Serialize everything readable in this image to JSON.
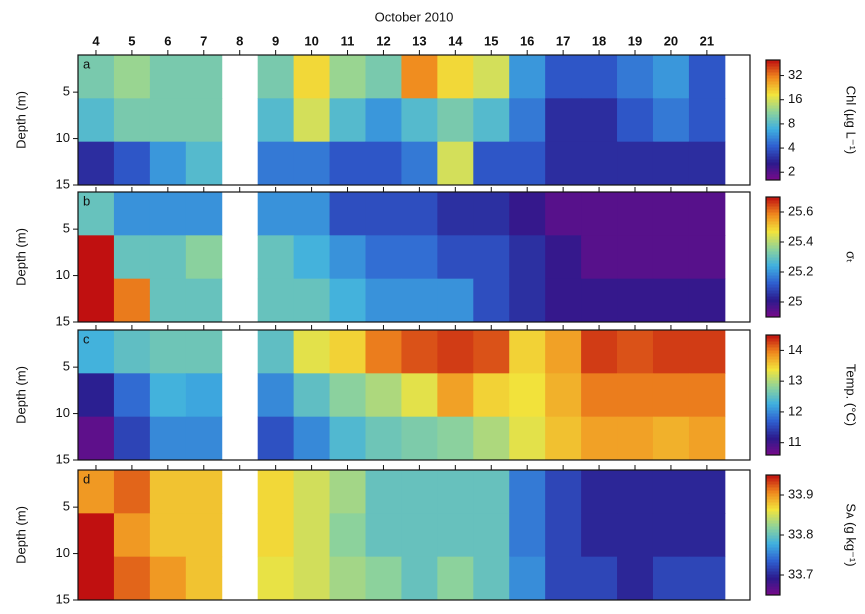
{
  "chart_data": [
    {
      "type": "heatmap",
      "title": "October 2010",
      "label": "a",
      "ylabel": "Depth (m)",
      "colorbar_label": "Chl (µg L⁻¹)",
      "xlim": [
        3.5,
        22.2
      ],
      "xticks": [
        4,
        5,
        6,
        7,
        8,
        9,
        10,
        11,
        12,
        13,
        14,
        15,
        16,
        17,
        18,
        19,
        20,
        21
      ],
      "ylim": [
        15,
        1
      ],
      "yticks": [
        5,
        10,
        15
      ],
      "x": [
        4,
        5,
        6,
        7,
        8,
        9,
        10,
        11,
        12,
        13,
        14,
        15,
        16,
        17,
        18,
        19,
        20,
        21
      ],
      "z": [
        [
          10,
          12,
          10,
          10,
          null,
          10,
          20,
          12,
          10,
          30,
          20,
          16,
          6,
          4,
          4,
          5,
          6,
          4
        ],
        [
          8,
          10,
          10,
          10,
          null,
          8,
          16,
          8,
          6,
          8,
          10,
          8,
          5,
          3,
          3,
          4,
          5,
          4
        ],
        [
          3,
          4,
          6,
          8,
          null,
          5,
          5,
          4,
          4,
          5,
          16,
          4,
          4,
          3,
          3,
          3,
          3,
          3
        ]
      ],
      "clim": [
        1.6,
        50
      ],
      "clog": true,
      "cticks": [
        2,
        4,
        8,
        16,
        32
      ]
    },
    {
      "type": "heatmap",
      "label": "b",
      "ylabel": "Depth (m)",
      "colorbar_label": "σₜ",
      "ylim": [
        15,
        1
      ],
      "yticks": [
        5,
        10,
        15
      ],
      "z": [
        [
          25.3,
          25.2,
          25.2,
          25.2,
          null,
          25.2,
          25.2,
          25.1,
          25.1,
          25.1,
          25.05,
          25.05,
          25.0,
          24.95,
          24.95,
          24.95,
          24.95,
          24.95
        ],
        [
          25.7,
          25.3,
          25.3,
          25.35,
          null,
          25.3,
          25.25,
          25.2,
          25.15,
          25.15,
          25.1,
          25.1,
          25.05,
          25.0,
          24.95,
          24.95,
          24.95,
          24.95
        ],
        [
          25.7,
          25.6,
          25.3,
          25.3,
          null,
          25.3,
          25.3,
          25.25,
          25.2,
          25.2,
          25.2,
          25.1,
          25.05,
          25.0,
          25.0,
          25.0,
          25.0,
          25.0
        ]
      ],
      "clim": [
        24.9,
        25.7
      ],
      "cticks": [
        25,
        25.2,
        25.4,
        25.6
      ]
    },
    {
      "type": "heatmap",
      "label": "c",
      "ylabel": "Depth (m)",
      "colorbar_label": "Temp. (°C)",
      "ylim": [
        15,
        1
      ],
      "yticks": [
        5,
        10,
        15
      ],
      "z": [
        [
          12.3,
          12.5,
          12.6,
          12.6,
          null,
          12.5,
          13.3,
          13.5,
          14,
          14.2,
          14.3,
          14.2,
          13.5,
          13.8,
          14.3,
          14.2,
          14.3,
          14.3
        ],
        [
          11.2,
          11.8,
          12.3,
          12.2,
          null,
          12,
          12.5,
          12.8,
          13,
          13.3,
          13.8,
          13.5,
          13.4,
          13.7,
          14,
          14,
          14,
          14
        ],
        [
          10.8,
          11.5,
          12,
          12,
          null,
          11.6,
          12,
          12.4,
          12.6,
          12.7,
          12.8,
          13,
          13.3,
          13.6,
          13.8,
          13.8,
          13.7,
          13.8
        ]
      ],
      "clim": [
        10.6,
        14.5
      ],
      "cticks": [
        11,
        12,
        13,
        14
      ]
    },
    {
      "type": "heatmap",
      "label": "d",
      "ylabel": "Depth (m)",
      "colorbar_label": "Sᴀ (g kg⁻¹)",
      "ylim": [
        15,
        1
      ],
      "yticks": [
        5,
        10,
        15
      ],
      "z": [
        [
          33.9,
          33.92,
          33.88,
          33.88,
          null,
          33.87,
          33.85,
          33.83,
          33.8,
          33.8,
          33.8,
          33.8,
          33.75,
          33.72,
          33.7,
          33.7,
          33.7,
          33.7
        ],
        [
          33.95,
          33.9,
          33.88,
          33.88,
          null,
          33.87,
          33.85,
          33.82,
          33.8,
          33.8,
          33.8,
          33.8,
          33.75,
          33.72,
          33.7,
          33.7,
          33.7,
          33.7
        ],
        [
          33.95,
          33.92,
          33.9,
          33.88,
          null,
          33.86,
          33.85,
          33.83,
          33.82,
          33.8,
          33.82,
          33.8,
          33.76,
          33.72,
          33.72,
          33.7,
          33.72,
          33.72
        ]
      ],
      "clim": [
        33.65,
        33.95
      ],
      "cticks": [
        33.7,
        33.8,
        33.9
      ]
    }
  ],
  "colormap": [
    "#7a0a8a",
    "#2b1a8c",
    "#2f5fd0",
    "#3fb0e0",
    "#8fd39a",
    "#f2e43c",
    "#f08a1e",
    "#c01010"
  ]
}
